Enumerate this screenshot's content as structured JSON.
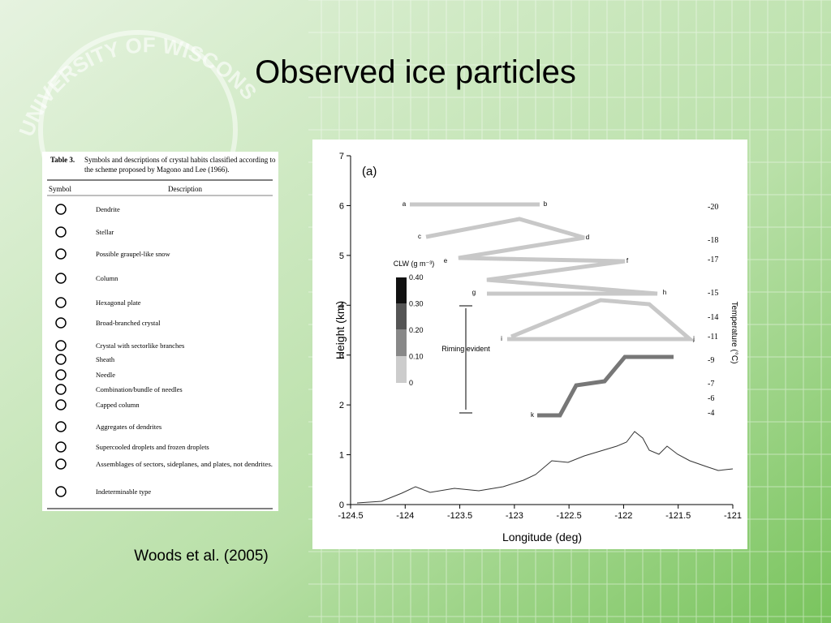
{
  "slide": {
    "title": "Observed ice particles",
    "citation": "Woods et al. (2005)",
    "watermark": "UNIVERSITY OF WISCONSIN - MADISON"
  },
  "table": {
    "caption_label": "Table 3.",
    "caption": "Symbols and descriptions of crystal habits classified according to the scheme proposed by Magono and Lee (1966).",
    "header": [
      "Symbol",
      "Description"
    ],
    "rows": [
      "Dendrite",
      "Stellar",
      "Possible graupel-like snow",
      "Column",
      "Hexagonal plate",
      "Broad-branched crystal",
      "Crystal with sectorlike branches",
      "Sheath",
      "Needle",
      "Combination/bundle of needles",
      "Capped column",
      "Aggregates of dendrites",
      "Supercooled droplets and frozen droplets",
      "Assemblages of sectors, sideplanes, and plates, not dendrites.",
      "Indeterminable type"
    ]
  },
  "figure": {
    "panel_label": "(a)",
    "x_label": "Longitude (deg)",
    "y_label": "Height (km)",
    "y2_label": "Temperature (°C)",
    "xticks": [
      -124.5,
      -124,
      -123.5,
      -123,
      -122.5,
      -122,
      -121.5,
      -121
    ],
    "yticks": [
      0,
      1,
      2,
      3,
      4,
      5,
      6,
      7
    ],
    "leg_labels": [
      "a",
      "b",
      "c",
      "d",
      "e",
      "f",
      "g",
      "h",
      "i",
      "j",
      "k"
    ],
    "temperature_labels": [
      -20,
      -18,
      -17,
      -15,
      -14,
      -11,
      -9,
      -7,
      -6,
      -4
    ],
    "colorbar": {
      "title": "CLW (g m⁻³)",
      "ticks": [
        "0.40",
        "0.30",
        "0.20",
        "0.10",
        "0"
      ]
    },
    "annotation": "Riming evident"
  }
}
